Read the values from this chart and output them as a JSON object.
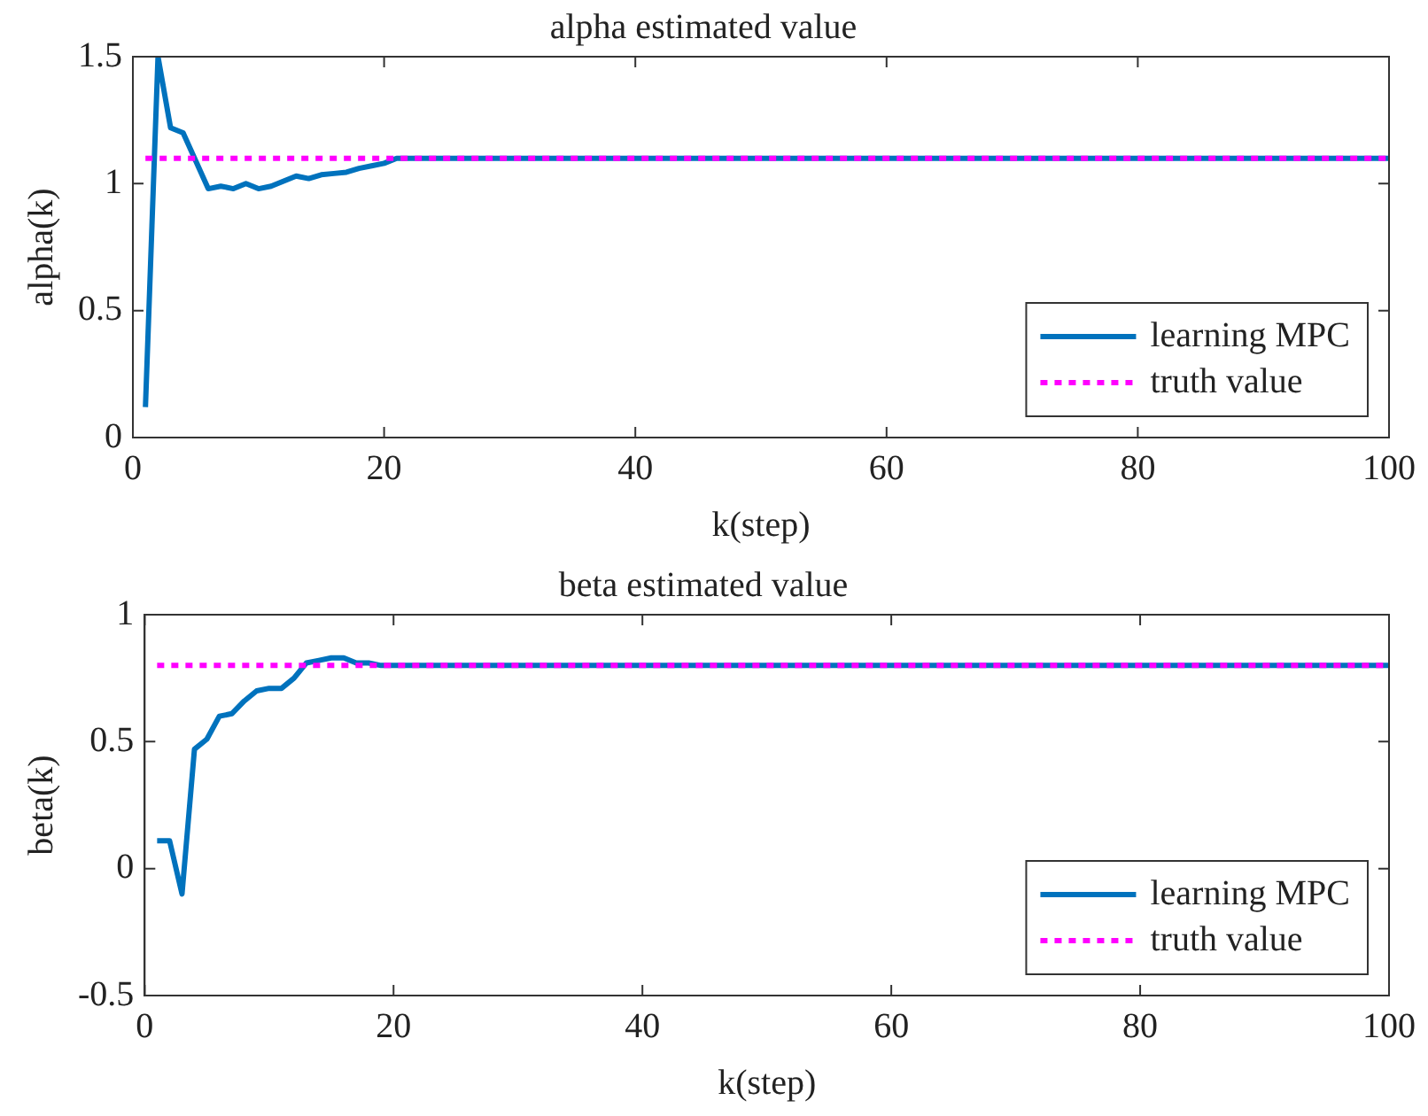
{
  "chart_data": [
    {
      "type": "line",
      "title": "alpha estimated value",
      "xlabel": "k(step)",
      "ylabel": "alpha(k)",
      "xlim": [
        0,
        100
      ],
      "xticks": [
        0,
        20,
        40,
        60,
        80,
        100
      ],
      "ylim": [
        0,
        1.5
      ],
      "yticks": [
        0,
        0.5,
        1,
        1.5
      ],
      "grid": false,
      "legend": "bottom right",
      "marker": "none",
      "series": [
        {
          "name": "learning MPC",
          "color": "#0072bd",
          "line_style": "solid",
          "x": [
            1,
            2,
            3,
            4,
            5,
            6,
            7,
            8,
            9,
            10,
            11,
            12,
            13,
            14,
            15,
            16,
            17,
            18,
            19,
            20,
            21,
            100
          ],
          "values": [
            0.12,
            1.5,
            1.22,
            1.2,
            1.09,
            0.98,
            0.99,
            0.98,
            1.0,
            0.98,
            0.99,
            1.01,
            1.03,
            1.02,
            1.035,
            1.04,
            1.045,
            1.06,
            1.07,
            1.08,
            1.1,
            1.1
          ]
        },
        {
          "name": "truth value",
          "color": "#ff00ff",
          "line_style": "dotted",
          "x": [
            1,
            100
          ],
          "values": [
            1.1,
            1.1
          ]
        }
      ]
    },
    {
      "type": "line",
      "title": "beta estimated value",
      "xlabel": "k(step)",
      "ylabel": "beta(k)",
      "xlim": [
        0,
        100
      ],
      "xticks": [
        0,
        20,
        40,
        60,
        80,
        100
      ],
      "ylim": [
        -0.5,
        1
      ],
      "yticks": [
        -0.5,
        0,
        0.5,
        1
      ],
      "grid": false,
      "legend": "bottom right",
      "marker": "none",
      "series": [
        {
          "name": "learning MPC",
          "color": "#0072bd",
          "line_style": "solid",
          "x": [
            1,
            2,
            3,
            4,
            5,
            6,
            7,
            8,
            9,
            10,
            11,
            12,
            13,
            14,
            15,
            16,
            17,
            18,
            19,
            100
          ],
          "values": [
            0.11,
            0.11,
            -0.1,
            0.47,
            0.51,
            0.6,
            0.61,
            0.66,
            0.7,
            0.71,
            0.71,
            0.75,
            0.81,
            0.82,
            0.83,
            0.83,
            0.81,
            0.81,
            0.8,
            0.8
          ]
        },
        {
          "name": "truth value",
          "color": "#ff00ff",
          "line_style": "dotted",
          "x": [
            1,
            100
          ],
          "values": [
            0.8,
            0.8
          ]
        }
      ]
    }
  ]
}
